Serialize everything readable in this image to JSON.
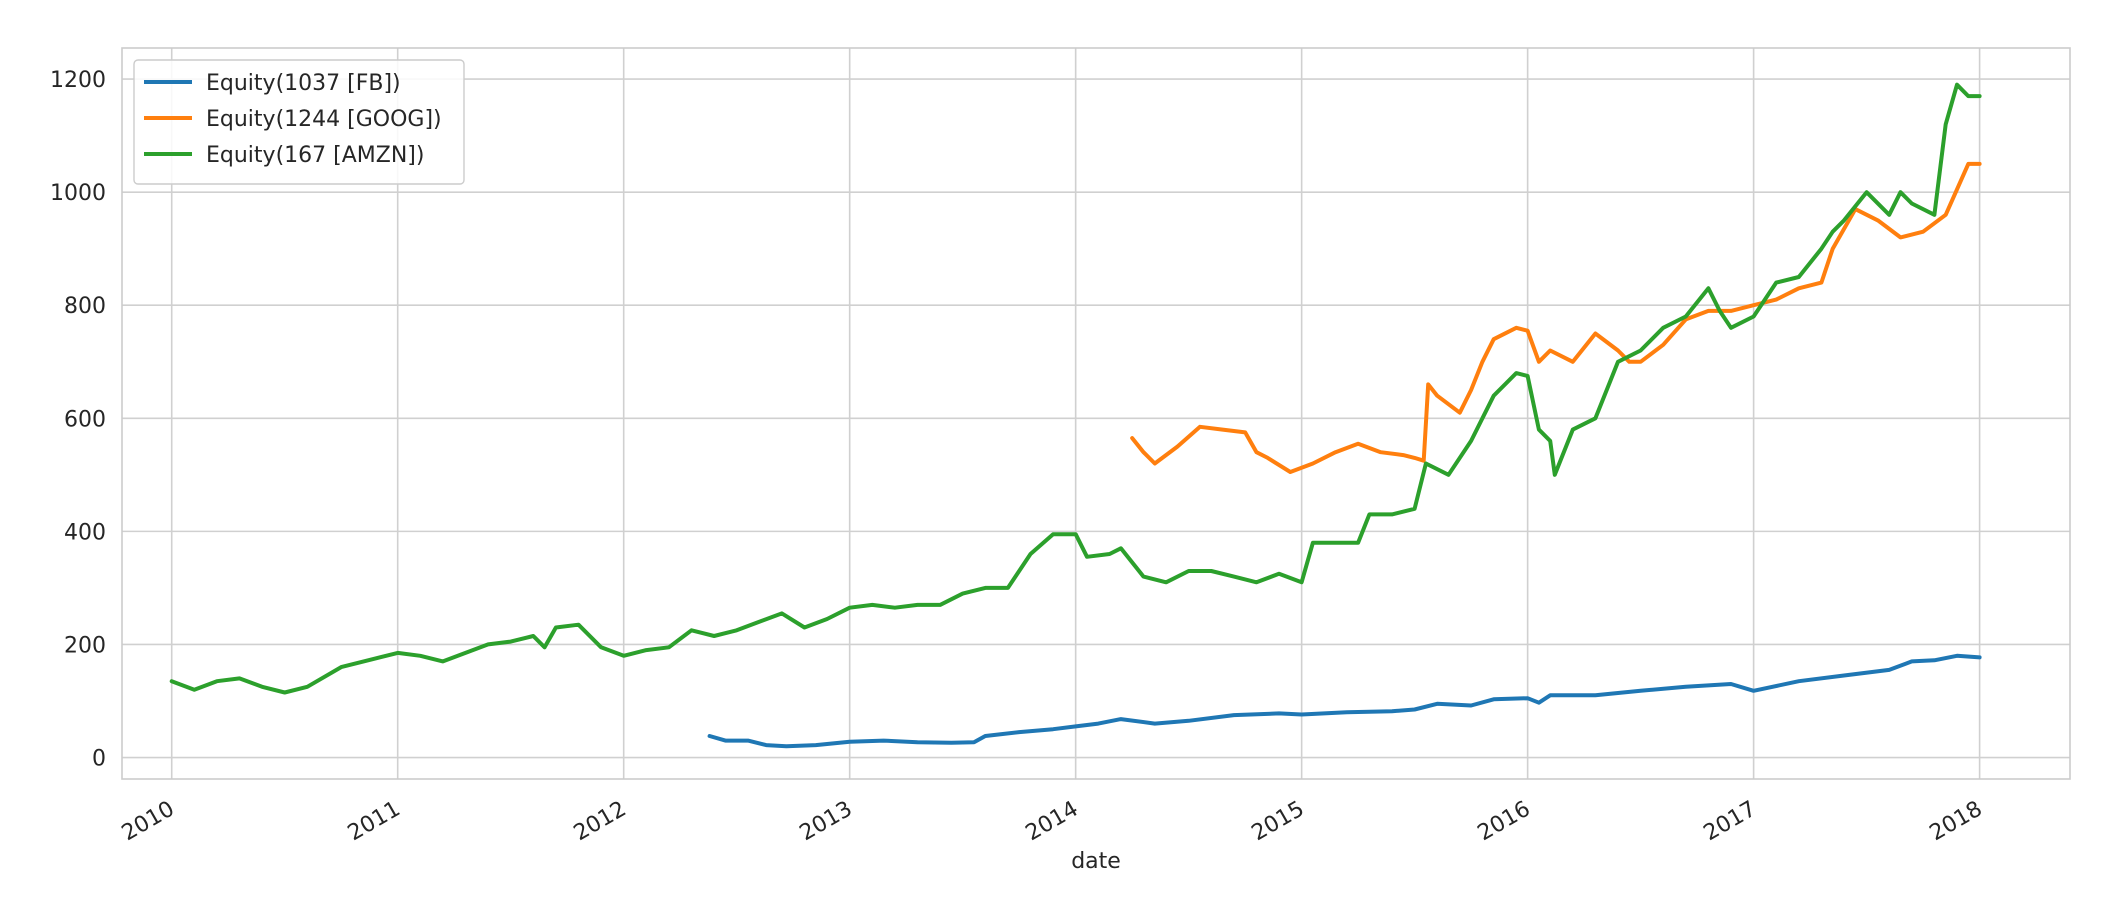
{
  "chart_data": {
    "type": "line",
    "title": "",
    "xlabel": "date",
    "ylabel": "",
    "xlim": [
      2009.78,
      2018.4
    ],
    "ylim": [
      -38,
      1255
    ],
    "x_ticks": [
      2010,
      2011,
      2012,
      2013,
      2014,
      2015,
      2016,
      2017,
      2018
    ],
    "x_tick_labels": [
      "2010",
      "2011",
      "2012",
      "2013",
      "2014",
      "2015",
      "2016",
      "2017",
      "2018"
    ],
    "y_ticks": [
      0,
      200,
      400,
      600,
      800,
      1000,
      1200
    ],
    "y_tick_labels": [
      "0",
      "200",
      "400",
      "600",
      "800",
      "1000",
      "1200"
    ],
    "grid": true,
    "legend_position": "top-left",
    "series": [
      {
        "name": "Equity(1037 [FB])",
        "color": "#1f77b4",
        "points": [
          [
            2012.38,
            38
          ],
          [
            2012.45,
            30
          ],
          [
            2012.55,
            30
          ],
          [
            2012.63,
            22
          ],
          [
            2012.72,
            20
          ],
          [
            2012.85,
            22
          ],
          [
            2013.0,
            28
          ],
          [
            2013.15,
            30
          ],
          [
            2013.3,
            27
          ],
          [
            2013.45,
            26
          ],
          [
            2013.55,
            27
          ],
          [
            2013.6,
            38
          ],
          [
            2013.75,
            45
          ],
          [
            2013.9,
            50
          ],
          [
            2014.0,
            55
          ],
          [
            2014.1,
            60
          ],
          [
            2014.2,
            68
          ],
          [
            2014.35,
            60
          ],
          [
            2014.5,
            65
          ],
          [
            2014.7,
            75
          ],
          [
            2014.9,
            78
          ],
          [
            2015.0,
            76
          ],
          [
            2015.2,
            80
          ],
          [
            2015.4,
            82
          ],
          [
            2015.5,
            85
          ],
          [
            2015.6,
            95
          ],
          [
            2015.75,
            92
          ],
          [
            2015.85,
            103
          ],
          [
            2016.0,
            105
          ],
          [
            2016.05,
            97
          ],
          [
            2016.1,
            110
          ],
          [
            2016.3,
            110
          ],
          [
            2016.5,
            118
          ],
          [
            2016.7,
            125
          ],
          [
            2016.9,
            130
          ],
          [
            2017.0,
            118
          ],
          [
            2017.2,
            135
          ],
          [
            2017.4,
            145
          ],
          [
            2017.6,
            155
          ],
          [
            2017.7,
            170
          ],
          [
            2017.8,
            172
          ],
          [
            2017.9,
            180
          ],
          [
            2018.0,
            177
          ]
        ]
      },
      {
        "name": "Equity(1244 [GOOG])",
        "color": "#ff7f0e",
        "points": [
          [
            2014.25,
            565
          ],
          [
            2014.3,
            540
          ],
          [
            2014.35,
            520
          ],
          [
            2014.45,
            550
          ],
          [
            2014.55,
            585
          ],
          [
            2014.65,
            580
          ],
          [
            2014.75,
            575
          ],
          [
            2014.8,
            540
          ],
          [
            2014.85,
            530
          ],
          [
            2014.95,
            505
          ],
          [
            2015.05,
            520
          ],
          [
            2015.15,
            540
          ],
          [
            2015.25,
            555
          ],
          [
            2015.35,
            540
          ],
          [
            2015.45,
            535
          ],
          [
            2015.5,
            530
          ],
          [
            2015.54,
            525
          ],
          [
            2015.56,
            660
          ],
          [
            2015.6,
            640
          ],
          [
            2015.7,
            610
          ],
          [
            2015.75,
            650
          ],
          [
            2015.8,
            700
          ],
          [
            2015.85,
            740
          ],
          [
            2015.95,
            760
          ],
          [
            2016.0,
            755
          ],
          [
            2016.05,
            700
          ],
          [
            2016.1,
            720
          ],
          [
            2016.2,
            700
          ],
          [
            2016.3,
            750
          ],
          [
            2016.4,
            720
          ],
          [
            2016.45,
            700
          ],
          [
            2016.5,
            700
          ],
          [
            2016.6,
            730
          ],
          [
            2016.7,
            775
          ],
          [
            2016.8,
            790
          ],
          [
            2016.9,
            790
          ],
          [
            2017.0,
            800
          ],
          [
            2017.1,
            810
          ],
          [
            2017.2,
            830
          ],
          [
            2017.3,
            840
          ],
          [
            2017.35,
            900
          ],
          [
            2017.45,
            970
          ],
          [
            2017.55,
            950
          ],
          [
            2017.65,
            920
          ],
          [
            2017.75,
            930
          ],
          [
            2017.85,
            960
          ],
          [
            2017.95,
            1050
          ],
          [
            2018.0,
            1050
          ]
        ]
      },
      {
        "name": "Equity(167 [AMZN])",
        "color": "#2ca02c",
        "points": [
          [
            2010.0,
            135
          ],
          [
            2010.1,
            120
          ],
          [
            2010.2,
            135
          ],
          [
            2010.3,
            140
          ],
          [
            2010.4,
            125
          ],
          [
            2010.5,
            115
          ],
          [
            2010.6,
            125
          ],
          [
            2010.75,
            160
          ],
          [
            2010.9,
            175
          ],
          [
            2011.0,
            185
          ],
          [
            2011.1,
            180
          ],
          [
            2011.2,
            170
          ],
          [
            2011.3,
            185
          ],
          [
            2011.4,
            200
          ],
          [
            2011.5,
            205
          ],
          [
            2011.6,
            215
          ],
          [
            2011.65,
            195
          ],
          [
            2011.7,
            230
          ],
          [
            2011.8,
            235
          ],
          [
            2011.9,
            195
          ],
          [
            2012.0,
            180
          ],
          [
            2012.1,
            190
          ],
          [
            2012.2,
            195
          ],
          [
            2012.3,
            225
          ],
          [
            2012.4,
            215
          ],
          [
            2012.5,
            225
          ],
          [
            2012.6,
            240
          ],
          [
            2012.7,
            255
          ],
          [
            2012.8,
            230
          ],
          [
            2012.9,
            245
          ],
          [
            2013.0,
            265
          ],
          [
            2013.1,
            270
          ],
          [
            2013.2,
            265
          ],
          [
            2013.3,
            270
          ],
          [
            2013.4,
            270
          ],
          [
            2013.5,
            290
          ],
          [
            2013.6,
            300
          ],
          [
            2013.7,
            300
          ],
          [
            2013.8,
            360
          ],
          [
            2013.9,
            395
          ],
          [
            2014.0,
            395
          ],
          [
            2014.05,
            355
          ],
          [
            2014.15,
            360
          ],
          [
            2014.2,
            370
          ],
          [
            2014.3,
            320
          ],
          [
            2014.4,
            310
          ],
          [
            2014.5,
            330
          ],
          [
            2014.6,
            330
          ],
          [
            2014.7,
            320
          ],
          [
            2014.8,
            310
          ],
          [
            2014.9,
            325
          ],
          [
            2015.0,
            310
          ],
          [
            2015.05,
            380
          ],
          [
            2015.15,
            380
          ],
          [
            2015.25,
            380
          ],
          [
            2015.3,
            430
          ],
          [
            2015.4,
            430
          ],
          [
            2015.5,
            440
          ],
          [
            2015.55,
            520
          ],
          [
            2015.65,
            500
          ],
          [
            2015.75,
            560
          ],
          [
            2015.85,
            640
          ],
          [
            2015.95,
            680
          ],
          [
            2016.0,
            675
          ],
          [
            2016.05,
            580
          ],
          [
            2016.1,
            560
          ],
          [
            2016.12,
            500
          ],
          [
            2016.2,
            580
          ],
          [
            2016.3,
            600
          ],
          [
            2016.4,
            700
          ],
          [
            2016.5,
            720
          ],
          [
            2016.6,
            760
          ],
          [
            2016.7,
            780
          ],
          [
            2016.8,
            830
          ],
          [
            2016.85,
            790
          ],
          [
            2016.9,
            760
          ],
          [
            2017.0,
            780
          ],
          [
            2017.1,
            840
          ],
          [
            2017.2,
            850
          ],
          [
            2017.3,
            900
          ],
          [
            2017.35,
            930
          ],
          [
            2017.4,
            950
          ],
          [
            2017.5,
            1000
          ],
          [
            2017.6,
            960
          ],
          [
            2017.65,
            1000
          ],
          [
            2017.7,
            980
          ],
          [
            2017.8,
            960
          ],
          [
            2017.85,
            1120
          ],
          [
            2017.9,
            1190
          ],
          [
            2017.95,
            1170
          ],
          [
            2018.0,
            1170
          ]
        ]
      }
    ]
  }
}
